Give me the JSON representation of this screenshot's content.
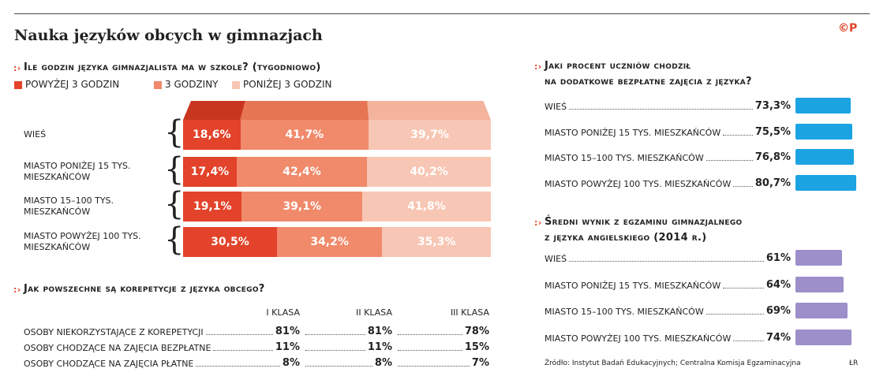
{
  "title": "Nauka języków obcych w gimnazjach",
  "logo": "©P",
  "source": "Źródło: Instytut Badań Edukacyjnych; Centralna Komisja Egzaminacyjna",
  "author": "ŁR",
  "chart_data": [
    {
      "type": "stacked-bar",
      "title": [
        "Ile godzin języka gimnazjalista ma w szkole? (tygodniowo)"
      ],
      "categories": [
        "WIEŚ",
        "MIASTO PONIŻEJ 15 TYS. MIESZKAŃCÓW",
        "MIASTO 15–100 TYS. MIESZKAŃCÓW",
        "MIASTO POWYŻEJ 100 TYS. MIESZKAŃCÓW"
      ],
      "series": [
        {
          "name": "POWYŻEJ 3 GODZIN",
          "color": "#e2432a",
          "values": [
            18.6,
            17.4,
            19.1,
            30.5
          ],
          "value_labels": [
            "18,6%",
            "17,4%",
            "19,1%",
            "30,5%"
          ]
        },
        {
          "name": "3 GODZINY",
          "color": "#f08a6b",
          "values": [
            41.7,
            42.4,
            39.1,
            34.2
          ],
          "value_labels": [
            "41,7%",
            "42,4%",
            "39,1%",
            "34,2%"
          ]
        },
        {
          "name": "PONIŻEJ 3 GODZIN",
          "color": "#f8c6b4",
          "values": [
            39.7,
            40.2,
            41.8,
            35.3
          ],
          "value_labels": [
            "39,7%",
            "40,2%",
            "41,8%",
            "35,3%"
          ]
        }
      ]
    },
    {
      "type": "table",
      "title": [
        "Jak powszechne są korepetycje z języka obcego?"
      ],
      "columns": [
        "I KLASA",
        "II KLASA",
        "III KLASA"
      ],
      "rows": [
        {
          "label": "OSOBY NIEKORZYSTAJĄCE Z KOREPETYCJI",
          "cells": [
            "81%",
            "81%",
            "78%"
          ]
        },
        {
          "label": "OSOBY CHODZĄCE NA ZAJĘCIA BEZPŁATNE",
          "cells": [
            "11%",
            "11%",
            "15%"
          ]
        },
        {
          "label": "OSOBY CHODZĄCE NA ZAJĘCIA PŁATNE",
          "cells": [
            "8%",
            "8%",
            "7%"
          ]
        }
      ]
    },
    {
      "type": "hbar",
      "title": [
        "Jaki procent uczniów chodził",
        "na dodatkowe bezpłatne zajęcia z języka?"
      ],
      "categories": [
        "WIEŚ",
        "MIASTO PONIŻEJ 15 TYS. MIESZKAŃCÓW",
        "MIASTO 15–100 TYS. MIESZKAŃCÓW",
        "MIASTO POWYŻEJ 100 TYS. MIESZKAŃCÓW"
      ],
      "values": [
        73.3,
        75.5,
        76.8,
        80.7
      ],
      "value_labels": [
        "73,3%",
        "75,5%",
        "76,8%",
        "80,7%"
      ],
      "color": "#1ba3e2"
    },
    {
      "type": "hbar",
      "title": [
        "Średni wynik z egzaminu gimnazjalnego",
        "z języka angielskiego (2014 r.)"
      ],
      "categories": [
        "WIEŚ",
        "MIASTO PONIŻEJ 15 TYS. MIESZKAŃCÓW",
        "MIASTO 15–100 TYS. MIESZKAŃCÓW",
        "MIASTO POWYŻEJ 100 TYS. MIESZKAŃCÓW"
      ],
      "values": [
        61,
        64,
        69,
        74
      ],
      "value_labels": [
        "61%",
        "64%",
        "69%",
        "74%"
      ],
      "color": "#9c8fca"
    }
  ]
}
